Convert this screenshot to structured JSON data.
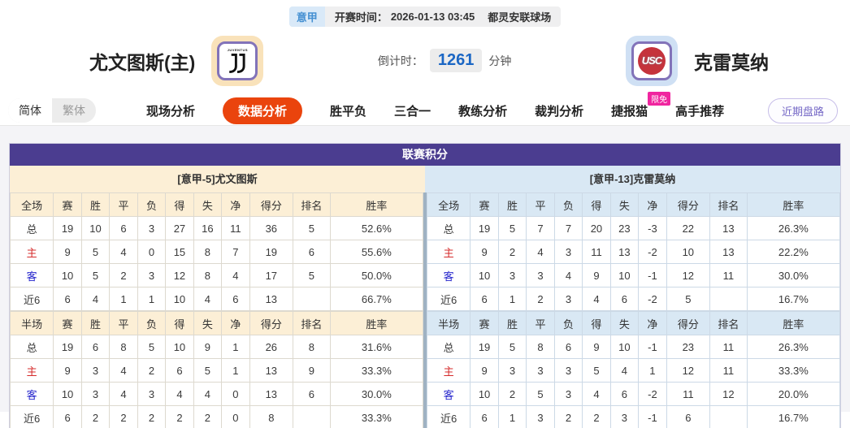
{
  "colors": {
    "accent_orange": "#ea440d",
    "panel_purple": "#4b3d90",
    "home_cream": "#fcefd6",
    "away_blue": "#d9e8f4",
    "badge_pink": "#f0259f",
    "countdown_blue": "#1a66c4",
    "home_label_red": "#d52b2b",
    "away_label_blue": "#2525cc"
  },
  "match_bar": {
    "league_tag": "意甲",
    "kickoff_label": "开赛时间：",
    "kickoff_time": "2026-01-13 03:45",
    "venue": "都灵安联球场"
  },
  "match_header": {
    "home_name": "尤文图斯(主)",
    "home_logo_text": "JUVENTUS",
    "away_name": "克雷莫纳",
    "away_logo_text": "USC",
    "countdown_label": "倒计时：",
    "countdown_value": "1261",
    "countdown_unit": "分钟"
  },
  "nav": {
    "lang": {
      "simplified": "简体",
      "traditional": "繁体"
    },
    "tabs": [
      {
        "label": "现场分析",
        "active": false
      },
      {
        "label": "数据分析",
        "active": true
      },
      {
        "label": "胜平负",
        "active": false
      },
      {
        "label": "三合一",
        "active": false
      },
      {
        "label": "教练分析",
        "active": false
      },
      {
        "label": "裁判分析",
        "active": false
      },
      {
        "label": "捷报猫",
        "active": false,
        "badge": "限免"
      },
      {
        "label": "高手推荐",
        "active": false
      }
    ],
    "recent_trend_button": "近期盘路"
  },
  "league_points": {
    "title": "联赛积分",
    "home": {
      "subtitle": "[意甲-5]尤文图斯",
      "full": {
        "headers": [
          "全场",
          "赛",
          "胜",
          "平",
          "负",
          "得",
          "失",
          "净",
          "得分",
          "排名",
          "胜率"
        ],
        "rows": [
          {
            "label": "总",
            "type": "total",
            "cells": [
              "19",
              "10",
              "6",
              "3",
              "27",
              "16",
              "11",
              "36",
              "5",
              "52.6%"
            ]
          },
          {
            "label": "主",
            "type": "home",
            "cells": [
              "9",
              "5",
              "4",
              "0",
              "15",
              "8",
              "7",
              "19",
              "6",
              "55.6%"
            ]
          },
          {
            "label": "客",
            "type": "away",
            "cells": [
              "10",
              "5",
              "2",
              "3",
              "12",
              "8",
              "4",
              "17",
              "5",
              "50.0%"
            ]
          },
          {
            "label": "近6",
            "type": "recent",
            "cells": [
              "6",
              "4",
              "1",
              "1",
              "10",
              "4",
              "6",
              "13",
              "",
              "66.7%"
            ]
          }
        ]
      },
      "half": {
        "headers": [
          "半场",
          "赛",
          "胜",
          "平",
          "负",
          "得",
          "失",
          "净",
          "得分",
          "排名",
          "胜率"
        ],
        "rows": [
          {
            "label": "总",
            "type": "total",
            "cells": [
              "19",
              "6",
              "8",
              "5",
              "10",
              "9",
              "1",
              "26",
              "8",
              "31.6%"
            ]
          },
          {
            "label": "主",
            "type": "home",
            "cells": [
              "9",
              "3",
              "4",
              "2",
              "6",
              "5",
              "1",
              "13",
              "9",
              "33.3%"
            ]
          },
          {
            "label": "客",
            "type": "away",
            "cells": [
              "10",
              "3",
              "4",
              "3",
              "4",
              "4",
              "0",
              "13",
              "6",
              "30.0%"
            ]
          },
          {
            "label": "近6",
            "type": "recent",
            "cells": [
              "6",
              "2",
              "2",
              "2",
              "2",
              "2",
              "0",
              "8",
              "",
              "33.3%"
            ]
          }
        ]
      }
    },
    "away": {
      "subtitle": "[意甲-13]克雷莫纳",
      "full": {
        "headers": [
          "全场",
          "赛",
          "胜",
          "平",
          "负",
          "得",
          "失",
          "净",
          "得分",
          "排名",
          "胜率"
        ],
        "rows": [
          {
            "label": "总",
            "type": "total",
            "cells": [
              "19",
              "5",
              "7",
              "7",
              "20",
              "23",
              "-3",
              "22",
              "13",
              "26.3%"
            ]
          },
          {
            "label": "主",
            "type": "home",
            "cells": [
              "9",
              "2",
              "4",
              "3",
              "11",
              "13",
              "-2",
              "10",
              "13",
              "22.2%"
            ]
          },
          {
            "label": "客",
            "type": "away",
            "cells": [
              "10",
              "3",
              "3",
              "4",
              "9",
              "10",
              "-1",
              "12",
              "11",
              "30.0%"
            ]
          },
          {
            "label": "近6",
            "type": "recent",
            "cells": [
              "6",
              "1",
              "2",
              "3",
              "4",
              "6",
              "-2",
              "5",
              "",
              "16.7%"
            ]
          }
        ]
      },
      "half": {
        "headers": [
          "半场",
          "赛",
          "胜",
          "平",
          "负",
          "得",
          "失",
          "净",
          "得分",
          "排名",
          "胜率"
        ],
        "rows": [
          {
            "label": "总",
            "type": "total",
            "cells": [
              "19",
              "5",
              "8",
              "6",
              "9",
              "10",
              "-1",
              "23",
              "11",
              "26.3%"
            ]
          },
          {
            "label": "主",
            "type": "home",
            "cells": [
              "9",
              "3",
              "3",
              "3",
              "5",
              "4",
              "1",
              "12",
              "11",
              "33.3%"
            ]
          },
          {
            "label": "客",
            "type": "away",
            "cells": [
              "10",
              "2",
              "5",
              "3",
              "4",
              "6",
              "-2",
              "11",
              "12",
              "20.0%"
            ]
          },
          {
            "label": "近6",
            "type": "recent",
            "cells": [
              "6",
              "1",
              "3",
              "2",
              "2",
              "3",
              "-1",
              "6",
              "",
              "16.7%"
            ]
          }
        ]
      }
    }
  }
}
